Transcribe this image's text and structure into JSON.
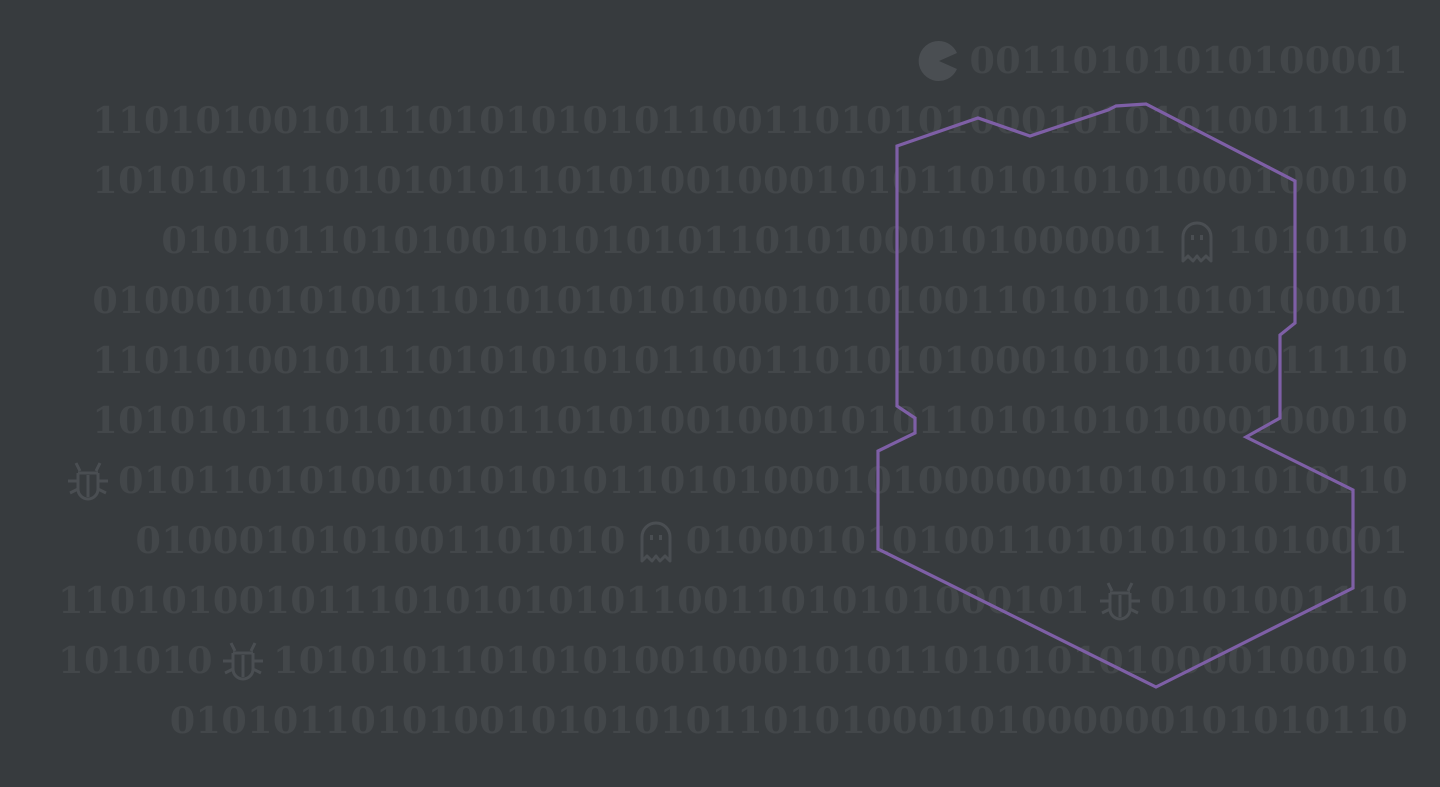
{
  "colors": {
    "background": "#373b3e",
    "digits": "#43474a",
    "icon": "#4a4e52",
    "outline": "#7e5fa6"
  },
  "rows": [
    {
      "id": "row-1",
      "segments": [
        {
          "icon": "pacman-icon"
        },
        {
          "text": "00110101010100001"
        }
      ]
    },
    {
      "id": "row-2",
      "segments": [
        {
          "text": "110101001011101010101011001101010100010101010011110"
        }
      ]
    },
    {
      "id": "row-3",
      "segments": [
        {
          "text": "101010111010101011010100100010101101010101000100010"
        }
      ]
    },
    {
      "id": "row-4",
      "segments": [
        {
          "text": "010101101010010101010110101000101000001"
        },
        {
          "icon": "ghost-icon"
        },
        {
          "text": "1010110"
        }
      ]
    },
    {
      "id": "row-5",
      "segments": [
        {
          "text": "010001010100110101010101000101010011010101010100001"
        }
      ]
    },
    {
      "id": "row-6",
      "segments": [
        {
          "text": "110101001011101010101011001101010100010101010011110"
        }
      ]
    },
    {
      "id": "row-7",
      "segments": [
        {
          "text": "101010111010101011010100100010101101010101000100010"
        }
      ]
    },
    {
      "id": "row-8",
      "segments": [
        {
          "icon": "bug-icon"
        },
        {
          "text": "01011010100101010101101010001010000001010101010110"
        }
      ]
    },
    {
      "id": "row-9",
      "segments": [
        {
          "text": "0100010101001101010"
        },
        {
          "icon": "ghost-icon"
        },
        {
          "text": "0100010101001101010101010001"
        }
      ]
    },
    {
      "id": "row-10",
      "segments": [
        {
          "text": "1101010010111010101010110011010101000101"
        },
        {
          "icon": "bug-icon"
        },
        {
          "text": "0101001110"
        }
      ]
    },
    {
      "id": "row-11",
      "segments": [
        {
          "text": "101010"
        },
        {
          "icon": "bug-icon"
        },
        {
          "text": "10101011010101001000101011010101010000100010"
        }
      ]
    },
    {
      "id": "row-12",
      "segments": [
        {
          "text": "010101101010010101010110101000101000000101010110"
        }
      ]
    }
  ],
  "outline_shape": "head-silhouette-outline"
}
